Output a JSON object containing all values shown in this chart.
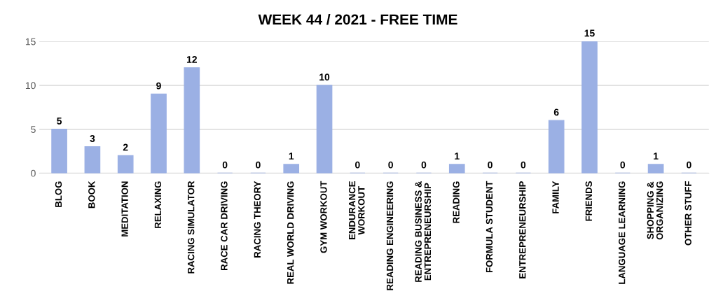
{
  "chart_data": {
    "type": "bar",
    "title": "WEEK 44 / 2021 - FREE TIME",
    "categories": [
      "BLOG",
      "BOOK",
      "MEDITATION",
      "RELAXING",
      "RACING SIMULATOR",
      "RACE CAR DRIVING",
      "RACING THEORY",
      "REAL WORLD DRIVING",
      "GYM WORKOUT",
      "ENDURANCE\nWORKOUT",
      "READING ENGINEERING",
      "READING BUSINESS &\nENTREPRENEURSHIP",
      "READING",
      "FORMULA STUDENT",
      "ENTREPRENEURSHIP",
      "FAMILY",
      "FRIENDS",
      "LANGUAGE LEARNING",
      "SHOPPING &\nORGANIZING",
      "OTHER STUFF"
    ],
    "values": [
      5,
      3,
      2,
      9,
      12,
      0,
      0,
      1,
      10,
      0,
      0,
      0,
      1,
      0,
      0,
      6,
      15,
      0,
      1,
      0
    ],
    "color": "#9bb0e4",
    "ylim": [
      0,
      15
    ],
    "yticks": [
      0,
      5,
      10,
      15
    ],
    "grid": "y",
    "data_labels": true
  }
}
